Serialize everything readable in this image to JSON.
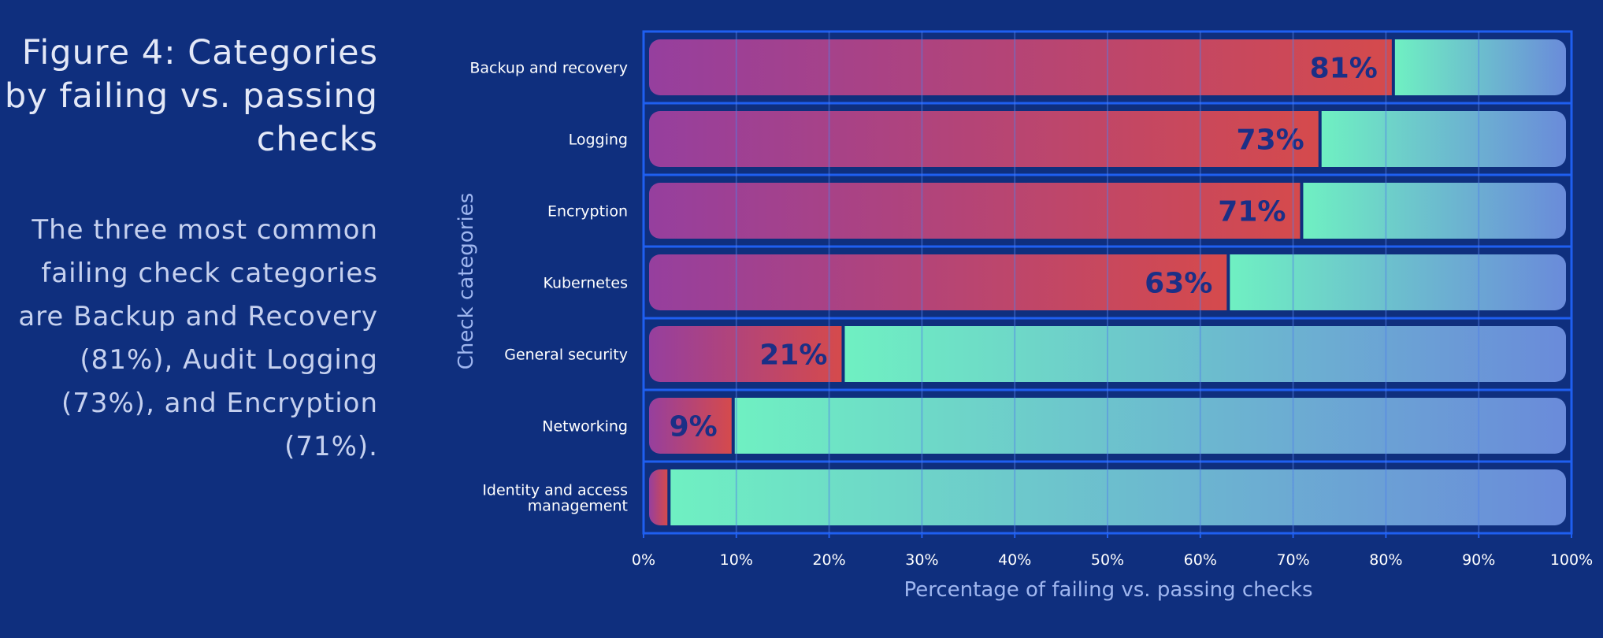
{
  "figure": {
    "title": "Figure 4: Categories by failing vs. passing checks",
    "description": "The three most common failing check categories are Backup and Recovery (81%), Audit Logging (73%), and Encryption (71%)."
  },
  "chart_data": {
    "type": "bar",
    "orientation": "horizontal",
    "stacked": true,
    "categories": [
      "Backup and recovery",
      "Logging",
      "Encryption",
      "Kubernetes",
      "General security",
      "Networking",
      "Identity and access management"
    ],
    "series": [
      {
        "values": [
          81,
          73,
          71,
          63,
          21,
          9,
          2
        ]
      },
      {
        "values": [
          19,
          27,
          29,
          37,
          79,
          91,
          98
        ]
      }
    ],
    "data_labels": [
      "81%",
      "73%",
      "71%",
      "63%",
      "21%",
      "9%",
      ""
    ],
    "xlabel": "Percentage of failing vs. passing checks",
    "ylabel": "Check categories",
    "xlim": [
      0,
      100
    ],
    "xticks": [
      "0%",
      "10%",
      "20%",
      "30%",
      "40%",
      "50%",
      "60%",
      "70%",
      "80%",
      "90%",
      "100%"
    ],
    "grid": true,
    "colors": {
      "background": "#0f2f7e",
      "failing_start": "#963f9e",
      "failing_end": "#d54a4c",
      "passing_start": "#6ff0c2",
      "passing_end": "#6a8bda",
      "frame": "#1f5ff0",
      "grid": "#4f7fe8",
      "axis_title": "#9fb6ef",
      "data_label": "#1b2f86"
    }
  }
}
